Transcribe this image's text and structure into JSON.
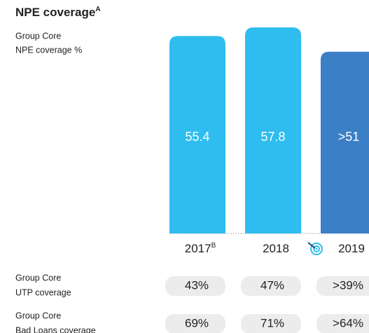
{
  "chart_data": {
    "type": "bar",
    "title": "NPE coverage",
    "title_note": "A",
    "subtitle": [
      "Group Core",
      "NPE coverage %"
    ],
    "categories": [
      "2017",
      "2018",
      "2019"
    ],
    "category_notes": [
      "B",
      null,
      null
    ],
    "values": [
      55.4,
      57.8,
      51
    ],
    "value_labels": [
      "55.4",
      "57.8",
      ">51"
    ],
    "colors": [
      "#2ebdee",
      "#2ebdee",
      "#3b7fc6"
    ],
    "ylim": [
      0,
      60
    ]
  },
  "coverage_table": {
    "rows": [
      {
        "label": [
          "Group Core",
          "UTP coverage"
        ],
        "values": [
          "43%",
          "47%",
          ">39%"
        ]
      },
      {
        "label": [
          "Group Core",
          "Bad Loans coverage"
        ],
        "values": [
          "69%",
          "71%",
          ">64%"
        ]
      }
    ]
  }
}
